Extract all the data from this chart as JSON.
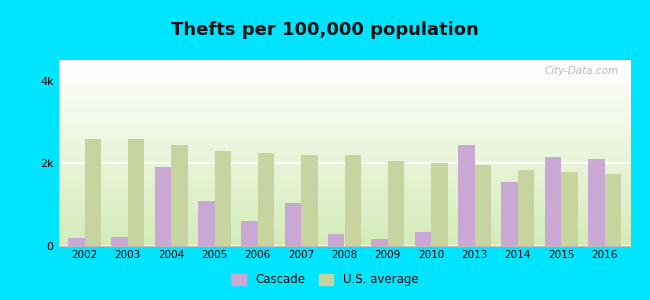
{
  "title": "Thefts per 100,000 population",
  "years": [
    2002,
    2003,
    2004,
    2005,
    2006,
    2007,
    2008,
    2009,
    2010,
    2013,
    2014,
    2015,
    2016
  ],
  "cascade": [
    200,
    220,
    1900,
    1100,
    600,
    1050,
    300,
    180,
    350,
    2450,
    1550,
    2150,
    2100
  ],
  "us_average": [
    2600,
    2600,
    2450,
    2300,
    2250,
    2200,
    2200,
    2050,
    2000,
    1950,
    1850,
    1800,
    1750
  ],
  "cascade_color": "#c9a8d4",
  "us_avg_color": "#c8d4a0",
  "outer_bg": "#00e5ff",
  "ylim": [
    0,
    4500
  ],
  "yticks": [
    0,
    2000,
    4000
  ],
  "ytick_labels": [
    "0",
    "2k",
    "4k"
  ],
  "bar_width": 0.38,
  "title_fontsize": 13,
  "watermark": "City-Data.com"
}
